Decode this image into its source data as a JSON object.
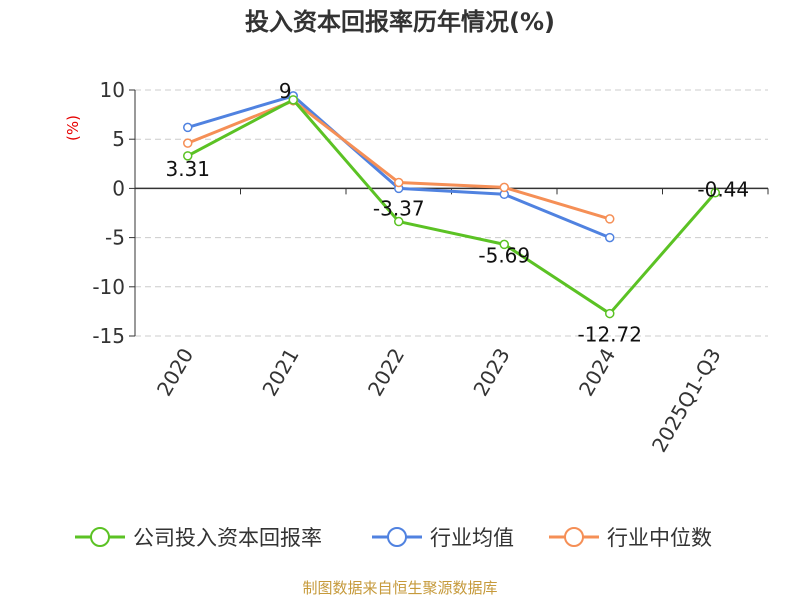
{
  "chart_data": {
    "type": "line",
    "title": "投入资本回报率历年情况(%)",
    "y_unit": "(%)",
    "categories": [
      "2020",
      "2021",
      "2022",
      "2023",
      "2024",
      "2025Q1-Q3"
    ],
    "ylim": [
      -15,
      10
    ],
    "y_ticks": [
      10,
      5,
      0,
      -5,
      -10,
      -15
    ],
    "grid": "horizontal-dashed",
    "legend_position": "bottom",
    "series": [
      {
        "name": "公司投入资本回报率",
        "color": "#5bc224",
        "values": [
          3.31,
          9,
          -3.37,
          -5.69,
          -12.72,
          -0.44
        ],
        "labels": [
          "3.31",
          "9",
          "-3.37",
          "-5.69",
          "-12.72",
          "-0.44"
        ]
      },
      {
        "name": "行业均值",
        "color": "#5082e0",
        "values": [
          6.2,
          9.4,
          0.0,
          -0.6,
          -5.0,
          null
        ]
      },
      {
        "name": "行业中位数",
        "color": "#f58f56",
        "values": [
          4.6,
          8.9,
          0.6,
          0.1,
          -3.1,
          null
        ]
      }
    ]
  },
  "source": "制图数据来自恒生聚源数据库"
}
